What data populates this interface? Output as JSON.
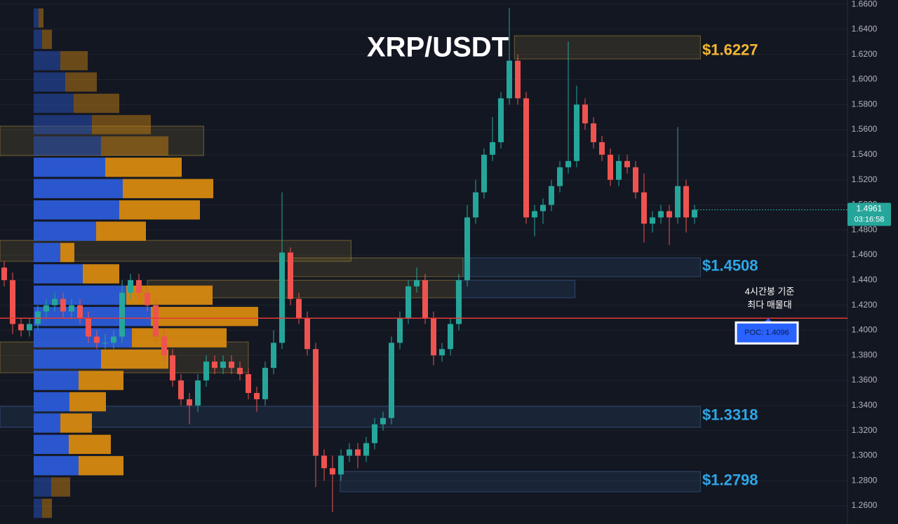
{
  "chart_data": {
    "type": "candlestick",
    "title": "XRP/USDT",
    "ylim": [
      1.2455,
      1.6634
    ],
    "yticks": [
      {
        "value": 1.26,
        "label": "1.2600"
      },
      {
        "value": 1.28,
        "label": "1.2800"
      },
      {
        "value": 1.3,
        "label": "1.3000"
      },
      {
        "value": 1.32,
        "label": "1.3200"
      },
      {
        "value": 1.34,
        "label": "1.3400"
      },
      {
        "value": 1.36,
        "label": "1.3600"
      },
      {
        "value": 1.38,
        "label": "1.3800"
      },
      {
        "value": 1.4,
        "label": "1.4000"
      },
      {
        "value": 1.42,
        "label": "1.4200"
      },
      {
        "value": 1.44,
        "label": "1.4400"
      },
      {
        "value": 1.46,
        "label": "1.4600"
      },
      {
        "value": 1.48,
        "label": "1.4800"
      },
      {
        "value": 1.5,
        "label": "1.5000"
      },
      {
        "value": 1.52,
        "label": "1.5200"
      },
      {
        "value": 1.54,
        "label": "1.5400"
      },
      {
        "value": 1.56,
        "label": "1.5600"
      },
      {
        "value": 1.58,
        "label": "1.5800"
      },
      {
        "value": 1.6,
        "label": "1.6000"
      },
      {
        "value": 1.62,
        "label": "1.6200"
      },
      {
        "value": 1.64,
        "label": "1.6400"
      },
      {
        "value": 1.66,
        "label": "1.6600"
      }
    ],
    "grid": true,
    "candles": {
      "color_up": "#26a69a",
      "color_down": "#ef5350",
      "open": [
        1.45,
        1.44,
        1.405,
        1.4,
        1.405,
        1.415,
        1.42,
        1.425,
        1.415,
        1.42,
        1.41,
        1.395,
        1.39,
        1.39,
        1.395,
        1.43,
        1.44,
        1.43,
        1.42,
        1.395,
        1.38,
        1.36,
        1.345,
        1.34,
        1.36,
        1.375,
        1.37,
        1.375,
        1.37,
        1.365,
        1.35,
        1.345,
        1.37,
        1.39,
        1.462,
        1.425,
        1.41,
        1.385,
        1.3,
        1.29,
        1.285,
        1.3,
        1.305,
        1.3,
        1.31,
        1.325,
        1.33,
        1.39,
        1.41,
        1.435,
        1.44,
        1.41,
        1.38,
        1.385,
        1.405,
        1.44,
        1.49,
        1.51,
        1.54,
        1.55,
        1.585,
        1.615,
        1.585,
        1.49,
        1.495,
        1.5,
        1.515,
        1.53,
        1.535,
        1.58,
        1.565,
        1.55,
        1.54,
        1.52,
        1.535,
        1.53,
        1.51,
        1.485,
        1.49,
        1.495,
        1.49,
        1.515,
        1.49
      ],
      "high": [
        1.455,
        1.446,
        1.41,
        1.41,
        1.42,
        1.425,
        1.43,
        1.43,
        1.425,
        1.425,
        1.415,
        1.4,
        1.397,
        1.4,
        1.44,
        1.445,
        1.445,
        1.435,
        1.425,
        1.4,
        1.385,
        1.365,
        1.35,
        1.365,
        1.38,
        1.38,
        1.38,
        1.38,
        1.375,
        1.37,
        1.355,
        1.375,
        1.4,
        1.51,
        1.466,
        1.43,
        1.415,
        1.39,
        1.305,
        1.3,
        1.305,
        1.31,
        1.31,
        1.315,
        1.33,
        1.335,
        1.395,
        1.415,
        1.44,
        1.45,
        1.445,
        1.415,
        1.39,
        1.41,
        1.445,
        1.5,
        1.52,
        1.545,
        1.57,
        1.59,
        1.657,
        1.62,
        1.59,
        1.5,
        1.505,
        1.52,
        1.535,
        1.63,
        1.595,
        1.585,
        1.57,
        1.555,
        1.545,
        1.54,
        1.54,
        1.535,
        1.525,
        1.495,
        1.5,
        1.5,
        1.562,
        1.52,
        1.5
      ],
      "low": [
        1.435,
        1.397,
        1.395,
        1.395,
        1.4,
        1.41,
        1.415,
        1.41,
        1.41,
        1.405,
        1.39,
        1.385,
        1.385,
        1.385,
        1.39,
        1.425,
        1.425,
        1.415,
        1.39,
        1.375,
        1.355,
        1.34,
        1.325,
        1.335,
        1.355,
        1.365,
        1.365,
        1.365,
        1.36,
        1.345,
        1.335,
        1.34,
        1.365,
        1.385,
        1.42,
        1.405,
        1.38,
        1.275,
        1.28,
        1.255,
        1.28,
        1.295,
        1.29,
        1.295,
        1.305,
        1.32,
        1.325,
        1.385,
        1.405,
        1.43,
        1.405,
        1.372,
        1.375,
        1.38,
        1.4,
        1.435,
        1.485,
        1.505,
        1.535,
        1.545,
        1.58,
        1.58,
        1.485,
        1.475,
        1.485,
        1.495,
        1.51,
        1.525,
        1.53,
        1.56,
        1.545,
        1.535,
        1.515,
        1.515,
        1.525,
        1.505,
        1.47,
        1.478,
        1.485,
        1.468,
        1.485,
        1.478,
        1.485
      ],
      "close": [
        1.44,
        1.405,
        1.4,
        1.405,
        1.415,
        1.42,
        1.425,
        1.415,
        1.42,
        1.41,
        1.395,
        1.39,
        1.39,
        1.395,
        1.43,
        1.44,
        1.43,
        1.42,
        1.395,
        1.38,
        1.36,
        1.345,
        1.34,
        1.36,
        1.375,
        1.37,
        1.375,
        1.37,
        1.365,
        1.35,
        1.345,
        1.37,
        1.39,
        1.462,
        1.425,
        1.41,
        1.385,
        1.3,
        1.29,
        1.285,
        1.3,
        1.305,
        1.3,
        1.31,
        1.325,
        1.33,
        1.39,
        1.41,
        1.435,
        1.44,
        1.41,
        1.38,
        1.385,
        1.405,
        1.44,
        1.49,
        1.51,
        1.54,
        1.55,
        1.585,
        1.615,
        1.585,
        1.49,
        1.495,
        1.5,
        1.515,
        1.53,
        1.535,
        1.58,
        1.565,
        1.55,
        1.54,
        1.52,
        1.535,
        1.53,
        1.51,
        1.485,
        1.49,
        1.495,
        1.49,
        1.515,
        1.49,
        1.4961
      ]
    },
    "volume_profile": {
      "buy_color": "#2b5bd7",
      "sell_color": "#d68910",
      "bins": [
        1.2495,
        1.2665,
        1.2835,
        1.3005,
        1.3175,
        1.3345,
        1.3515,
        1.3685,
        1.3855,
        1.4025,
        1.4195,
        1.4365,
        1.4535,
        1.4705,
        1.4875,
        1.5045,
        1.5215,
        1.5385,
        1.5555,
        1.5725,
        1.5895,
        1.6065,
        1.6235,
        1.6405,
        1.6575
      ],
      "buy": [
        12,
        25,
        64,
        50,
        38,
        51,
        64,
        96,
        140,
        167,
        132,
        70,
        38,
        89,
        122,
        127,
        102,
        96,
        83,
        57,
        45,
        38,
        12,
        7
      ],
      "sell": [
        14,
        27,
        64,
        60,
        45,
        52,
        64,
        96,
        135,
        153,
        123,
        52,
        20,
        71,
        115,
        129,
        109,
        96,
        84,
        65,
        45,
        39,
        14,
        7
      ],
      "value_area": [
        1.2835,
        1.5385
      ]
    },
    "zones": [
      {
        "low": 1.6164,
        "high": 1.6349,
        "from": 60.6,
        "to": 82.7,
        "color": "#c9a640"
      },
      {
        "low": 1.5393,
        "high": 1.5628,
        "from": -0.5,
        "to": 23.7,
        "color": "#c9a640"
      },
      {
        "low": 1.455,
        "high": 1.4717,
        "from": -0.5,
        "to": 41.2,
        "color": "#c9a640"
      },
      {
        "low": 1.4427,
        "high": 1.4578,
        "from": 33.7,
        "to": 54.5,
        "color": "#c9a640"
      },
      {
        "low": 1.4427,
        "high": 1.4578,
        "from": 54.5,
        "to": 82.7,
        "color": "#4a7ab5"
      },
      {
        "low": 1.4259,
        "high": 1.4399,
        "from": 17,
        "to": 53.7,
        "color": "#c9a640"
      },
      {
        "low": 1.4259,
        "high": 1.4399,
        "from": 53.7,
        "to": 67.8,
        "color": "#4a7ab5"
      },
      {
        "low": 1.3661,
        "high": 1.3907,
        "from": -0.5,
        "to": 29,
        "color": "#c9a640"
      },
      {
        "low": 1.3226,
        "high": 1.3393,
        "from": -0.5,
        "to": 82.7,
        "color": "#4a7ab5"
      },
      {
        "low": 1.2712,
        "high": 1.2874,
        "from": 39.9,
        "to": 82.7,
        "color": "#4a7ab5"
      }
    ],
    "levels": [
      {
        "value": 1.6227,
        "label": "$1.6227",
        "color": "#f5b731"
      },
      {
        "value": 1.4508,
        "label": "$1.4508",
        "color": "#2fa6e6"
      },
      {
        "value": 1.3318,
        "label": "$1.3318",
        "color": "#2fa6e6"
      },
      {
        "value": 1.2798,
        "label": "$1.2798",
        "color": "#2fa6e6"
      }
    ],
    "poc": {
      "value": 1.4096,
      "label": "POC: 1.4096",
      "color": "#e53935",
      "note": [
        "4시간봉 기준",
        "최다 매물대"
      ]
    },
    "last_price": 1.4961,
    "countdown": "03:16:58"
  }
}
